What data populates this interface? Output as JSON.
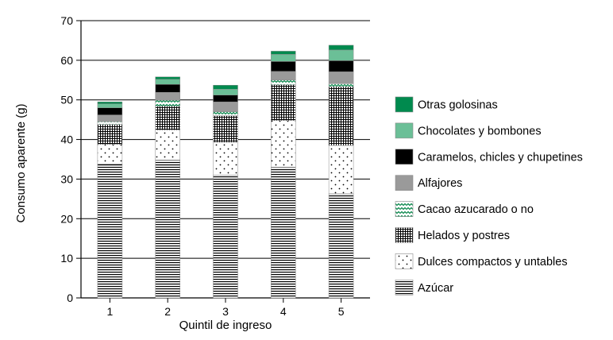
{
  "chart_data": {
    "type": "bar",
    "stacked": true,
    "title": "",
    "xlabel": "Quintil de ingreso",
    "ylabel": "Consumo aparente (g)",
    "ylim": [
      0,
      70
    ],
    "yticks": [
      0,
      10,
      20,
      30,
      40,
      50,
      60,
      70
    ],
    "grid": true,
    "legend_position": "right",
    "categories": [
      "1",
      "2",
      "3",
      "4",
      "5"
    ],
    "series": [
      {
        "name": "Azúcar",
        "pattern": "horizontal-lines",
        "color": "#000000",
        "values": [
          33.8,
          34.8,
          31.0,
          33.0,
          26.3
        ]
      },
      {
        "name": "Dulces compactos y untables",
        "pattern": "dots",
        "color": "#000000",
        "values": [
          5.0,
          7.6,
          8.3,
          11.8,
          12.2
        ]
      },
      {
        "name": "Helados y postres",
        "pattern": "grid",
        "color": "#000000",
        "values": [
          5.0,
          6.0,
          6.7,
          9.0,
          14.8
        ]
      },
      {
        "name": "Cacao azucarado o no",
        "pattern": "green-waves",
        "color": "#0e8a4f",
        "values": [
          0.7,
          1.5,
          1.0,
          1.2,
          0.8
        ]
      },
      {
        "name": "Alfajores",
        "pattern": "solid",
        "color": "#9a9a9a",
        "values": [
          1.7,
          2.0,
          2.5,
          2.2,
          3.0
        ]
      },
      {
        "name": "Caramelos, chicles y chupetines",
        "pattern": "solid",
        "color": "#000000",
        "values": [
          1.8,
          2.0,
          1.7,
          2.5,
          2.8
        ]
      },
      {
        "name": "Chocolates y bombones",
        "pattern": "solid",
        "color": "#6bbf97",
        "values": [
          1.0,
          1.3,
          1.5,
          1.8,
          2.7
        ]
      },
      {
        "name": "Otras golosinas",
        "pattern": "solid",
        "color": "#008a4e",
        "values": [
          0.5,
          0.6,
          1.0,
          0.8,
          1.2
        ]
      }
    ]
  }
}
